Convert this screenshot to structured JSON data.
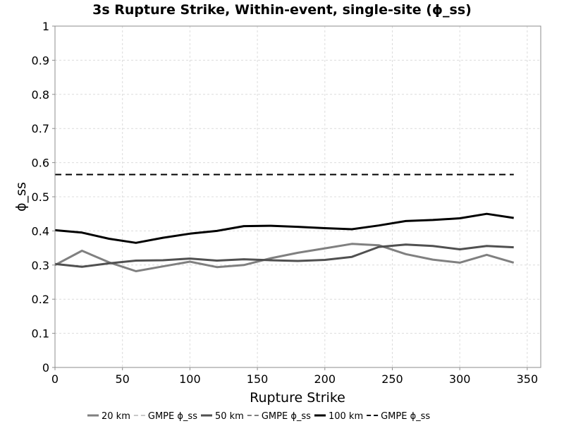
{
  "chart_data": {
    "type": "line",
    "title": "3s Rupture Strike, Within-event, single-site (ϕ_ss)",
    "xlabel": "Rupture Strike",
    "ylabel": "ϕ_ss",
    "xlim": [
      0,
      360
    ],
    "ylim": [
      0,
      1
    ],
    "xticks": [
      0,
      50,
      100,
      150,
      200,
      250,
      300,
      350
    ],
    "yticks": [
      0,
      0.1,
      0.2,
      0.3,
      0.4,
      0.5,
      0.6,
      0.7,
      0.8,
      0.9,
      1
    ],
    "grid": true,
    "legend_position": "bottom",
    "x": [
      0,
      20,
      40,
      60,
      80,
      100,
      120,
      140,
      160,
      180,
      200,
      220,
      240,
      260,
      280,
      300,
      320,
      340
    ],
    "series": [
      {
        "name": "20 km",
        "style": "solid",
        "color": "#808080",
        "values": [
          0.3,
          0.342,
          0.308,
          0.282,
          0.296,
          0.31,
          0.294,
          0.3,
          0.32,
          0.336,
          0.349,
          0.362,
          0.358,
          0.332,
          0.316,
          0.307,
          0.33,
          0.307
        ]
      },
      {
        "name": "GMPE ϕ_ss",
        "style": "dashed",
        "color": "#c8c8c8",
        "values": [
          0.565,
          0.565,
          0.565,
          0.565,
          0.565,
          0.565,
          0.565,
          0.565,
          0.565,
          0.565,
          0.565,
          0.565,
          0.565,
          0.565,
          0.565,
          0.565,
          0.565,
          0.565
        ]
      },
      {
        "name": "50 km",
        "style": "solid",
        "color": "#505050",
        "values": [
          0.303,
          0.295,
          0.305,
          0.313,
          0.314,
          0.319,
          0.313,
          0.317,
          0.314,
          0.312,
          0.315,
          0.324,
          0.353,
          0.36,
          0.356,
          0.346,
          0.356,
          0.352
        ]
      },
      {
        "name": "GMPE ϕ_ss",
        "style": "dashed",
        "color": "#808080",
        "values": [
          0.565,
          0.565,
          0.565,
          0.565,
          0.565,
          0.565,
          0.565,
          0.565,
          0.565,
          0.565,
          0.565,
          0.565,
          0.565,
          0.565,
          0.565,
          0.565,
          0.565,
          0.565
        ]
      },
      {
        "name": "100 km",
        "style": "solid",
        "color": "#000000",
        "values": [
          0.402,
          0.395,
          0.377,
          0.365,
          0.38,
          0.392,
          0.4,
          0.414,
          0.415,
          0.412,
          0.408,
          0.405,
          0.416,
          0.429,
          0.432,
          0.437,
          0.45,
          0.438
        ]
      },
      {
        "name": "GMPE ϕ_ss",
        "style": "dashed",
        "color": "#000000",
        "values": [
          0.565,
          0.565,
          0.565,
          0.565,
          0.565,
          0.565,
          0.565,
          0.565,
          0.565,
          0.565,
          0.565,
          0.565,
          0.565,
          0.565,
          0.565,
          0.565,
          0.565,
          0.565
        ]
      }
    ]
  }
}
